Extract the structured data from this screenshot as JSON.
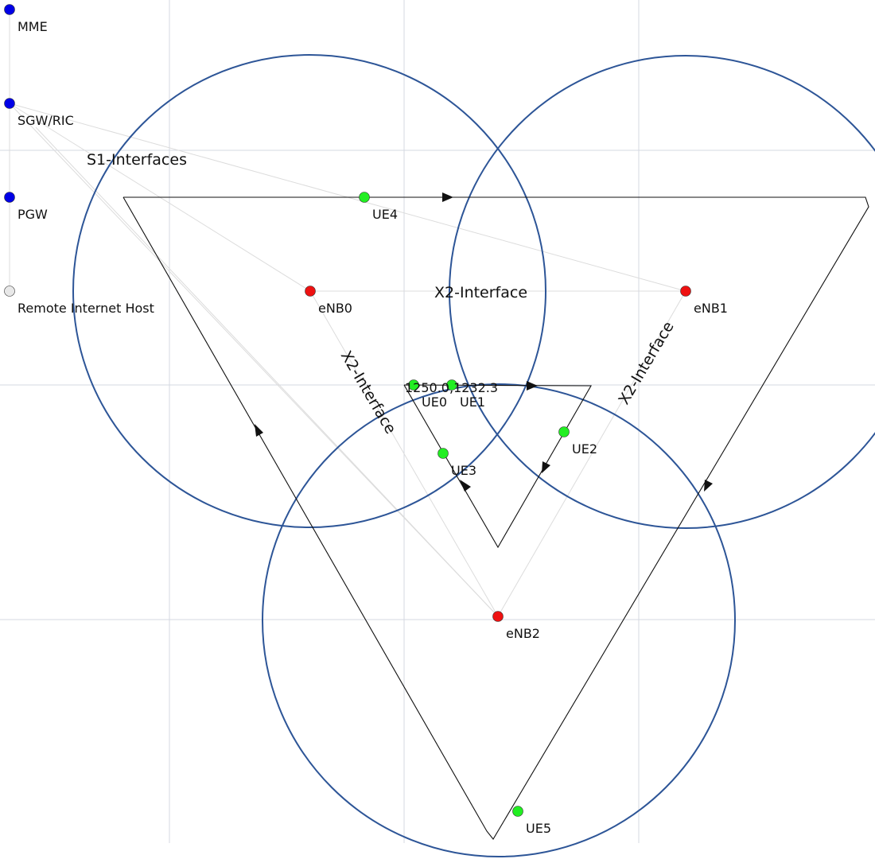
{
  "colors": {
    "core": "#0000e6",
    "enb": "#ee1111",
    "ue": "#22ee22",
    "host": "#e8e8e8",
    "cell": "#2d5597"
  },
  "core_nodes": {
    "mme": "MME",
    "sgw": "SGW/RIC",
    "pgw": "PGW",
    "host": "Remote Internet Host"
  },
  "enbs": {
    "enb0": "eNB0",
    "enb1": "eNB1",
    "enb2": "eNB2"
  },
  "ues": {
    "ue0": "UE0",
    "ue1": "UE1",
    "ue2": "UE2",
    "ue3": "UE3",
    "ue4": "UE4",
    "ue5": "UE5"
  },
  "annotations": {
    "s1": "S1-Interfaces",
    "x2_top": "X2-Interface",
    "x2_left": "X2-Interface",
    "x2_right": "X2-Interface",
    "coords": "1250.0,1232.3"
  }
}
